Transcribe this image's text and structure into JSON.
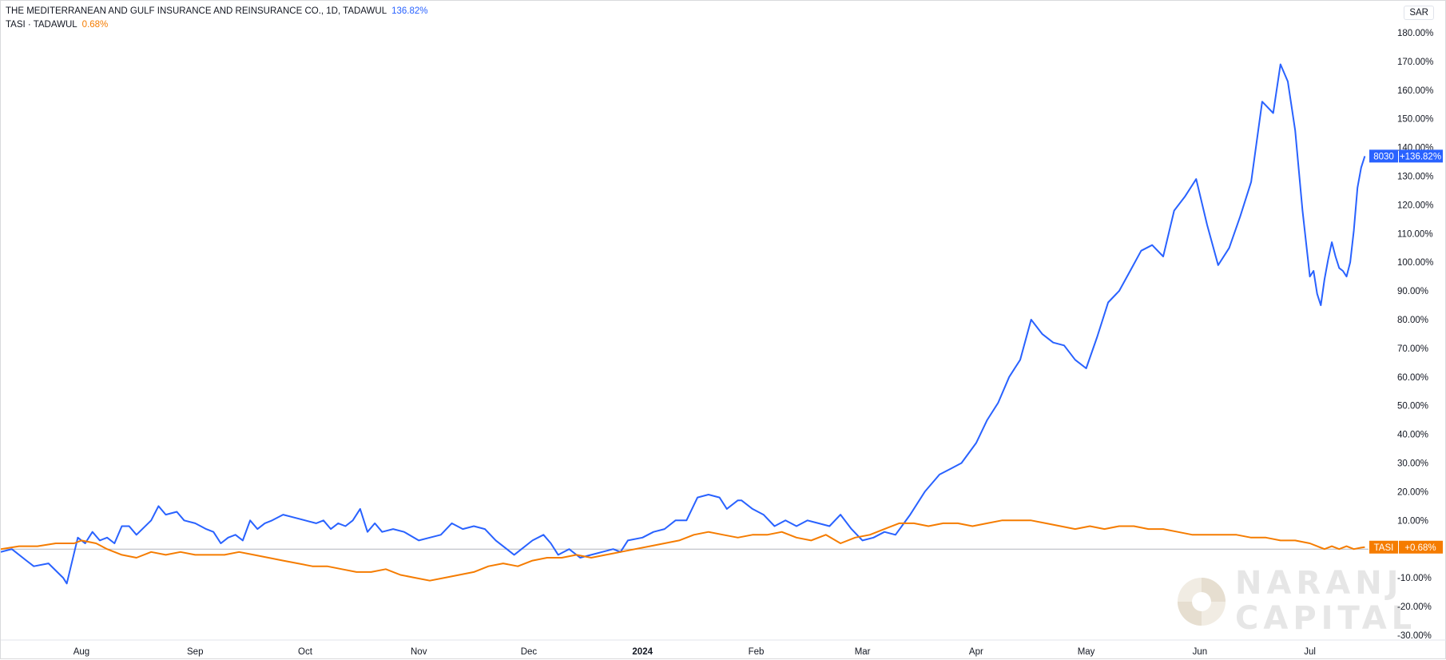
{
  "header": {
    "series1_title": "THE MEDITERRANEAN AND GULF INSURANCE AND REINSURANCE CO., 1D, TADAWUL",
    "series1_value": "136.82%",
    "series2_title": "TASI · TADAWUL",
    "series2_value": "0.68%",
    "currency": "SAR"
  },
  "tags": {
    "s1_symbol": "8030",
    "s1_change": "+136.82%",
    "s2_symbol": "TASI",
    "s2_change": "+0.68%"
  },
  "watermark": {
    "line1": "NARANJ",
    "line2": "CAPITAL"
  },
  "colors": {
    "series1": "#2962ff",
    "series2": "#f57c00",
    "zero_line": "#b2b5be",
    "watermark": "#e6e6e6"
  },
  "chart_data": {
    "type": "line",
    "title": "THE MEDITERRANEAN AND GULF INSURANCE AND REINSURANCE CO., 1D, TADAWUL",
    "xlabel": "",
    "ylabel": "",
    "ylim": [
      -30,
      185
    ],
    "yticks": [
      180,
      170,
      160,
      150,
      140,
      130,
      120,
      110,
      100,
      90,
      80,
      70,
      60,
      50,
      40,
      30,
      20,
      10,
      -10,
      -20,
      -30
    ],
    "yticks_labels": [
      "180.00%",
      "170.00%",
      "160.00%",
      "150.00%",
      "140.00%",
      "130.00%",
      "120.00%",
      "110.00%",
      "100.00%",
      "90.00%",
      "80.00%",
      "70.00%",
      "60.00%",
      "50.00%",
      "40.00%",
      "30.00%",
      "20.00%",
      "10.00%",
      "-10.00%",
      "-20.00%",
      "-30.00%"
    ],
    "xlim": [
      "2023-07-10",
      "2024-07-17"
    ],
    "x_ticks": [
      {
        "label": "Aug",
        "date": "2023-08-01"
      },
      {
        "label": "Sep",
        "date": "2023-09-01"
      },
      {
        "label": "Oct",
        "date": "2023-10-01"
      },
      {
        "label": "Nov",
        "date": "2023-11-01"
      },
      {
        "label": "Dec",
        "date": "2023-12-01"
      },
      {
        "label": "2024",
        "date": "2024-01-01",
        "bold": true
      },
      {
        "label": "Feb",
        "date": "2024-02-01"
      },
      {
        "label": "Mar",
        "date": "2024-03-01"
      },
      {
        "label": "Apr",
        "date": "2024-04-01"
      },
      {
        "label": "May",
        "date": "2024-05-01"
      },
      {
        "label": "Jun",
        "date": "2024-06-01"
      },
      {
        "label": "Jul",
        "date": "2024-07-01"
      }
    ],
    "grid": false,
    "legend": "top-left",
    "series": [
      {
        "name": "THE MEDITERRANEAN AND GULF INSURANCE AND REINSURANCE CO.",
        "color": "#2962ff",
        "points": [
          [
            "2023-07-10",
            -1
          ],
          [
            "2023-07-13",
            0
          ],
          [
            "2023-07-17",
            -4
          ],
          [
            "2023-07-19",
            -6
          ],
          [
            "2023-07-23",
            -5
          ],
          [
            "2023-07-27",
            -10
          ],
          [
            "2023-07-28",
            -12
          ],
          [
            "2023-07-31",
            4
          ],
          [
            "2023-08-02",
            2
          ],
          [
            "2023-08-04",
            6
          ],
          [
            "2023-08-06",
            3
          ],
          [
            "2023-08-08",
            4
          ],
          [
            "2023-08-10",
            2
          ],
          [
            "2023-08-12",
            8
          ],
          [
            "2023-08-14",
            8
          ],
          [
            "2023-08-16",
            5
          ],
          [
            "2023-08-20",
            10
          ],
          [
            "2023-08-22",
            15
          ],
          [
            "2023-08-24",
            12
          ],
          [
            "2023-08-27",
            13
          ],
          [
            "2023-08-29",
            10
          ],
          [
            "2023-09-01",
            9
          ],
          [
            "2023-09-04",
            7
          ],
          [
            "2023-09-06",
            6
          ],
          [
            "2023-09-08",
            2
          ],
          [
            "2023-09-10",
            4
          ],
          [
            "2023-09-12",
            5
          ],
          [
            "2023-09-14",
            3
          ],
          [
            "2023-09-16",
            10
          ],
          [
            "2023-09-18",
            7
          ],
          [
            "2023-09-20",
            9
          ],
          [
            "2023-09-22",
            10
          ],
          [
            "2023-09-25",
            12
          ],
          [
            "2023-09-28",
            11
          ],
          [
            "2023-10-01",
            10
          ],
          [
            "2023-10-04",
            9
          ],
          [
            "2023-10-06",
            10
          ],
          [
            "2023-10-08",
            7
          ],
          [
            "2023-10-10",
            9
          ],
          [
            "2023-10-12",
            8
          ],
          [
            "2023-10-14",
            10
          ],
          [
            "2023-10-16",
            14
          ],
          [
            "2023-10-18",
            6
          ],
          [
            "2023-10-20",
            9
          ],
          [
            "2023-10-22",
            6
          ],
          [
            "2023-10-25",
            7
          ],
          [
            "2023-10-28",
            6
          ],
          [
            "2023-11-01",
            3
          ],
          [
            "2023-11-04",
            4
          ],
          [
            "2023-11-07",
            5
          ],
          [
            "2023-11-10",
            9
          ],
          [
            "2023-11-13",
            7
          ],
          [
            "2023-11-16",
            8
          ],
          [
            "2023-11-19",
            7
          ],
          [
            "2023-11-22",
            3
          ],
          [
            "2023-11-25",
            0
          ],
          [
            "2023-11-27",
            -2
          ],
          [
            "2023-11-29",
            0
          ],
          [
            "2023-12-02",
            3
          ],
          [
            "2023-12-05",
            5
          ],
          [
            "2023-12-07",
            2
          ],
          [
            "2023-12-09",
            -2
          ],
          [
            "2023-12-12",
            0
          ],
          [
            "2023-12-15",
            -3
          ],
          [
            "2023-12-18",
            -2
          ],
          [
            "2023-12-21",
            -1
          ],
          [
            "2023-12-24",
            0
          ],
          [
            "2023-12-26",
            -1
          ],
          [
            "2023-12-28",
            3
          ],
          [
            "2024-01-01",
            4
          ],
          [
            "2024-01-04",
            6
          ],
          [
            "2024-01-07",
            7
          ],
          [
            "2024-01-10",
            10
          ],
          [
            "2024-01-13",
            10
          ],
          [
            "2024-01-16",
            18
          ],
          [
            "2024-01-19",
            19
          ],
          [
            "2024-01-22",
            18
          ],
          [
            "2024-01-24",
            14
          ],
          [
            "2024-01-27",
            17
          ],
          [
            "2024-01-28",
            17
          ],
          [
            "2024-01-31",
            14
          ],
          [
            "2024-02-03",
            12
          ],
          [
            "2024-02-06",
            8
          ],
          [
            "2024-02-09",
            10
          ],
          [
            "2024-02-12",
            8
          ],
          [
            "2024-02-15",
            10
          ],
          [
            "2024-02-18",
            9
          ],
          [
            "2024-02-21",
            8
          ],
          [
            "2024-02-24",
            12
          ],
          [
            "2024-02-27",
            7
          ],
          [
            "2024-03-01",
            3
          ],
          [
            "2024-03-04",
            4
          ],
          [
            "2024-03-07",
            6
          ],
          [
            "2024-03-10",
            5
          ],
          [
            "2024-03-14",
            12
          ],
          [
            "2024-03-18",
            20
          ],
          [
            "2024-03-22",
            26
          ],
          [
            "2024-03-25",
            28
          ],
          [
            "2024-03-28",
            30
          ],
          [
            "2024-04-01",
            37
          ],
          [
            "2024-04-04",
            45
          ],
          [
            "2024-04-07",
            51
          ],
          [
            "2024-04-10",
            60
          ],
          [
            "2024-04-13",
            66
          ],
          [
            "2024-04-16",
            80
          ],
          [
            "2024-04-19",
            75
          ],
          [
            "2024-04-22",
            72
          ],
          [
            "2024-04-25",
            71
          ],
          [
            "2024-04-28",
            66
          ],
          [
            "2024-05-01",
            63
          ],
          [
            "2024-05-04",
            74
          ],
          [
            "2024-05-07",
            86
          ],
          [
            "2024-05-10",
            90
          ],
          [
            "2024-05-13",
            97
          ],
          [
            "2024-05-16",
            104
          ],
          [
            "2024-05-19",
            106
          ],
          [
            "2024-05-22",
            102
          ],
          [
            "2024-05-25",
            118
          ],
          [
            "2024-05-28",
            123
          ],
          [
            "2024-05-31",
            129
          ],
          [
            "2024-06-03",
            113
          ],
          [
            "2024-06-06",
            99
          ],
          [
            "2024-06-09",
            105
          ],
          [
            "2024-06-12",
            116
          ],
          [
            "2024-06-15",
            128
          ],
          [
            "2024-06-18",
            156
          ],
          [
            "2024-06-21",
            152
          ],
          [
            "2024-06-23",
            169
          ],
          [
            "2024-06-25",
            163
          ],
          [
            "2024-06-27",
            146
          ],
          [
            "2024-06-29",
            118
          ],
          [
            "2024-07-01",
            95
          ],
          [
            "2024-07-02",
            97
          ],
          [
            "2024-07-03",
            89
          ],
          [
            "2024-07-04",
            85
          ],
          [
            "2024-07-05",
            94
          ],
          [
            "2024-07-06",
            101
          ],
          [
            "2024-07-07",
            107
          ],
          [
            "2024-07-08",
            102
          ],
          [
            "2024-07-09",
            98
          ],
          [
            "2024-07-10",
            97
          ],
          [
            "2024-07-11",
            95
          ],
          [
            "2024-07-12",
            100
          ],
          [
            "2024-07-13",
            111
          ],
          [
            "2024-07-14",
            126
          ],
          [
            "2024-07-15",
            133
          ],
          [
            "2024-07-16",
            137
          ]
        ]
      },
      {
        "name": "TASI · TADAWUL",
        "color": "#f57c00",
        "points": [
          [
            "2023-07-10",
            0
          ],
          [
            "2023-07-15",
            1
          ],
          [
            "2023-07-20",
            1
          ],
          [
            "2023-07-25",
            2
          ],
          [
            "2023-07-30",
            2
          ],
          [
            "2023-08-01",
            3
          ],
          [
            "2023-08-05",
            2
          ],
          [
            "2023-08-08",
            0
          ],
          [
            "2023-08-12",
            -2
          ],
          [
            "2023-08-16",
            -3
          ],
          [
            "2023-08-20",
            -1
          ],
          [
            "2023-08-24",
            -2
          ],
          [
            "2023-08-28",
            -1
          ],
          [
            "2023-09-01",
            -2
          ],
          [
            "2023-09-05",
            -2
          ],
          [
            "2023-09-09",
            -2
          ],
          [
            "2023-09-13",
            -1
          ],
          [
            "2023-09-17",
            -2
          ],
          [
            "2023-09-21",
            -3
          ],
          [
            "2023-09-25",
            -4
          ],
          [
            "2023-09-29",
            -5
          ],
          [
            "2023-10-03",
            -6
          ],
          [
            "2023-10-07",
            -6
          ],
          [
            "2023-10-11",
            -7
          ],
          [
            "2023-10-15",
            -8
          ],
          [
            "2023-10-19",
            -8
          ],
          [
            "2023-10-23",
            -7
          ],
          [
            "2023-10-27",
            -9
          ],
          [
            "2023-10-31",
            -10
          ],
          [
            "2023-11-04",
            -11
          ],
          [
            "2023-11-08",
            -10
          ],
          [
            "2023-11-12",
            -9
          ],
          [
            "2023-11-16",
            -8
          ],
          [
            "2023-11-20",
            -6
          ],
          [
            "2023-11-24",
            -5
          ],
          [
            "2023-11-28",
            -6
          ],
          [
            "2023-12-02",
            -4
          ],
          [
            "2023-12-06",
            -3
          ],
          [
            "2023-12-10",
            -3
          ],
          [
            "2023-12-14",
            -2
          ],
          [
            "2023-12-18",
            -3
          ],
          [
            "2023-12-22",
            -2
          ],
          [
            "2023-12-26",
            -1
          ],
          [
            "2023-12-30",
            0
          ],
          [
            "2024-01-03",
            1
          ],
          [
            "2024-01-07",
            2
          ],
          [
            "2024-01-11",
            3
          ],
          [
            "2024-01-15",
            5
          ],
          [
            "2024-01-19",
            6
          ],
          [
            "2024-01-23",
            5
          ],
          [
            "2024-01-27",
            4
          ],
          [
            "2024-01-31",
            5
          ],
          [
            "2024-02-04",
            5
          ],
          [
            "2024-02-08",
            6
          ],
          [
            "2024-02-12",
            4
          ],
          [
            "2024-02-16",
            3
          ],
          [
            "2024-02-20",
            5
          ],
          [
            "2024-02-24",
            2
          ],
          [
            "2024-02-28",
            4
          ],
          [
            "2024-03-03",
            5
          ],
          [
            "2024-03-07",
            7
          ],
          [
            "2024-03-11",
            9
          ],
          [
            "2024-03-15",
            9
          ],
          [
            "2024-03-19",
            8
          ],
          [
            "2024-03-23",
            9
          ],
          [
            "2024-03-27",
            9
          ],
          [
            "2024-03-31",
            8
          ],
          [
            "2024-04-04",
            9
          ],
          [
            "2024-04-08",
            10
          ],
          [
            "2024-04-12",
            10
          ],
          [
            "2024-04-16",
            10
          ],
          [
            "2024-04-20",
            9
          ],
          [
            "2024-04-24",
            8
          ],
          [
            "2024-04-28",
            7
          ],
          [
            "2024-05-02",
            8
          ],
          [
            "2024-05-06",
            7
          ],
          [
            "2024-05-10",
            8
          ],
          [
            "2024-05-14",
            8
          ],
          [
            "2024-05-18",
            7
          ],
          [
            "2024-05-22",
            7
          ],
          [
            "2024-05-26",
            6
          ],
          [
            "2024-05-30",
            5
          ],
          [
            "2024-06-03",
            5
          ],
          [
            "2024-06-07",
            5
          ],
          [
            "2024-06-11",
            5
          ],
          [
            "2024-06-15",
            4
          ],
          [
            "2024-06-19",
            4
          ],
          [
            "2024-06-23",
            3
          ],
          [
            "2024-06-27",
            3
          ],
          [
            "2024-07-01",
            2
          ],
          [
            "2024-07-03",
            1
          ],
          [
            "2024-07-05",
            0
          ],
          [
            "2024-07-07",
            1
          ],
          [
            "2024-07-09",
            0
          ],
          [
            "2024-07-11",
            1
          ],
          [
            "2024-07-13",
            0
          ],
          [
            "2024-07-15",
            0.5
          ],
          [
            "2024-07-16",
            0.68
          ]
        ]
      }
    ]
  }
}
